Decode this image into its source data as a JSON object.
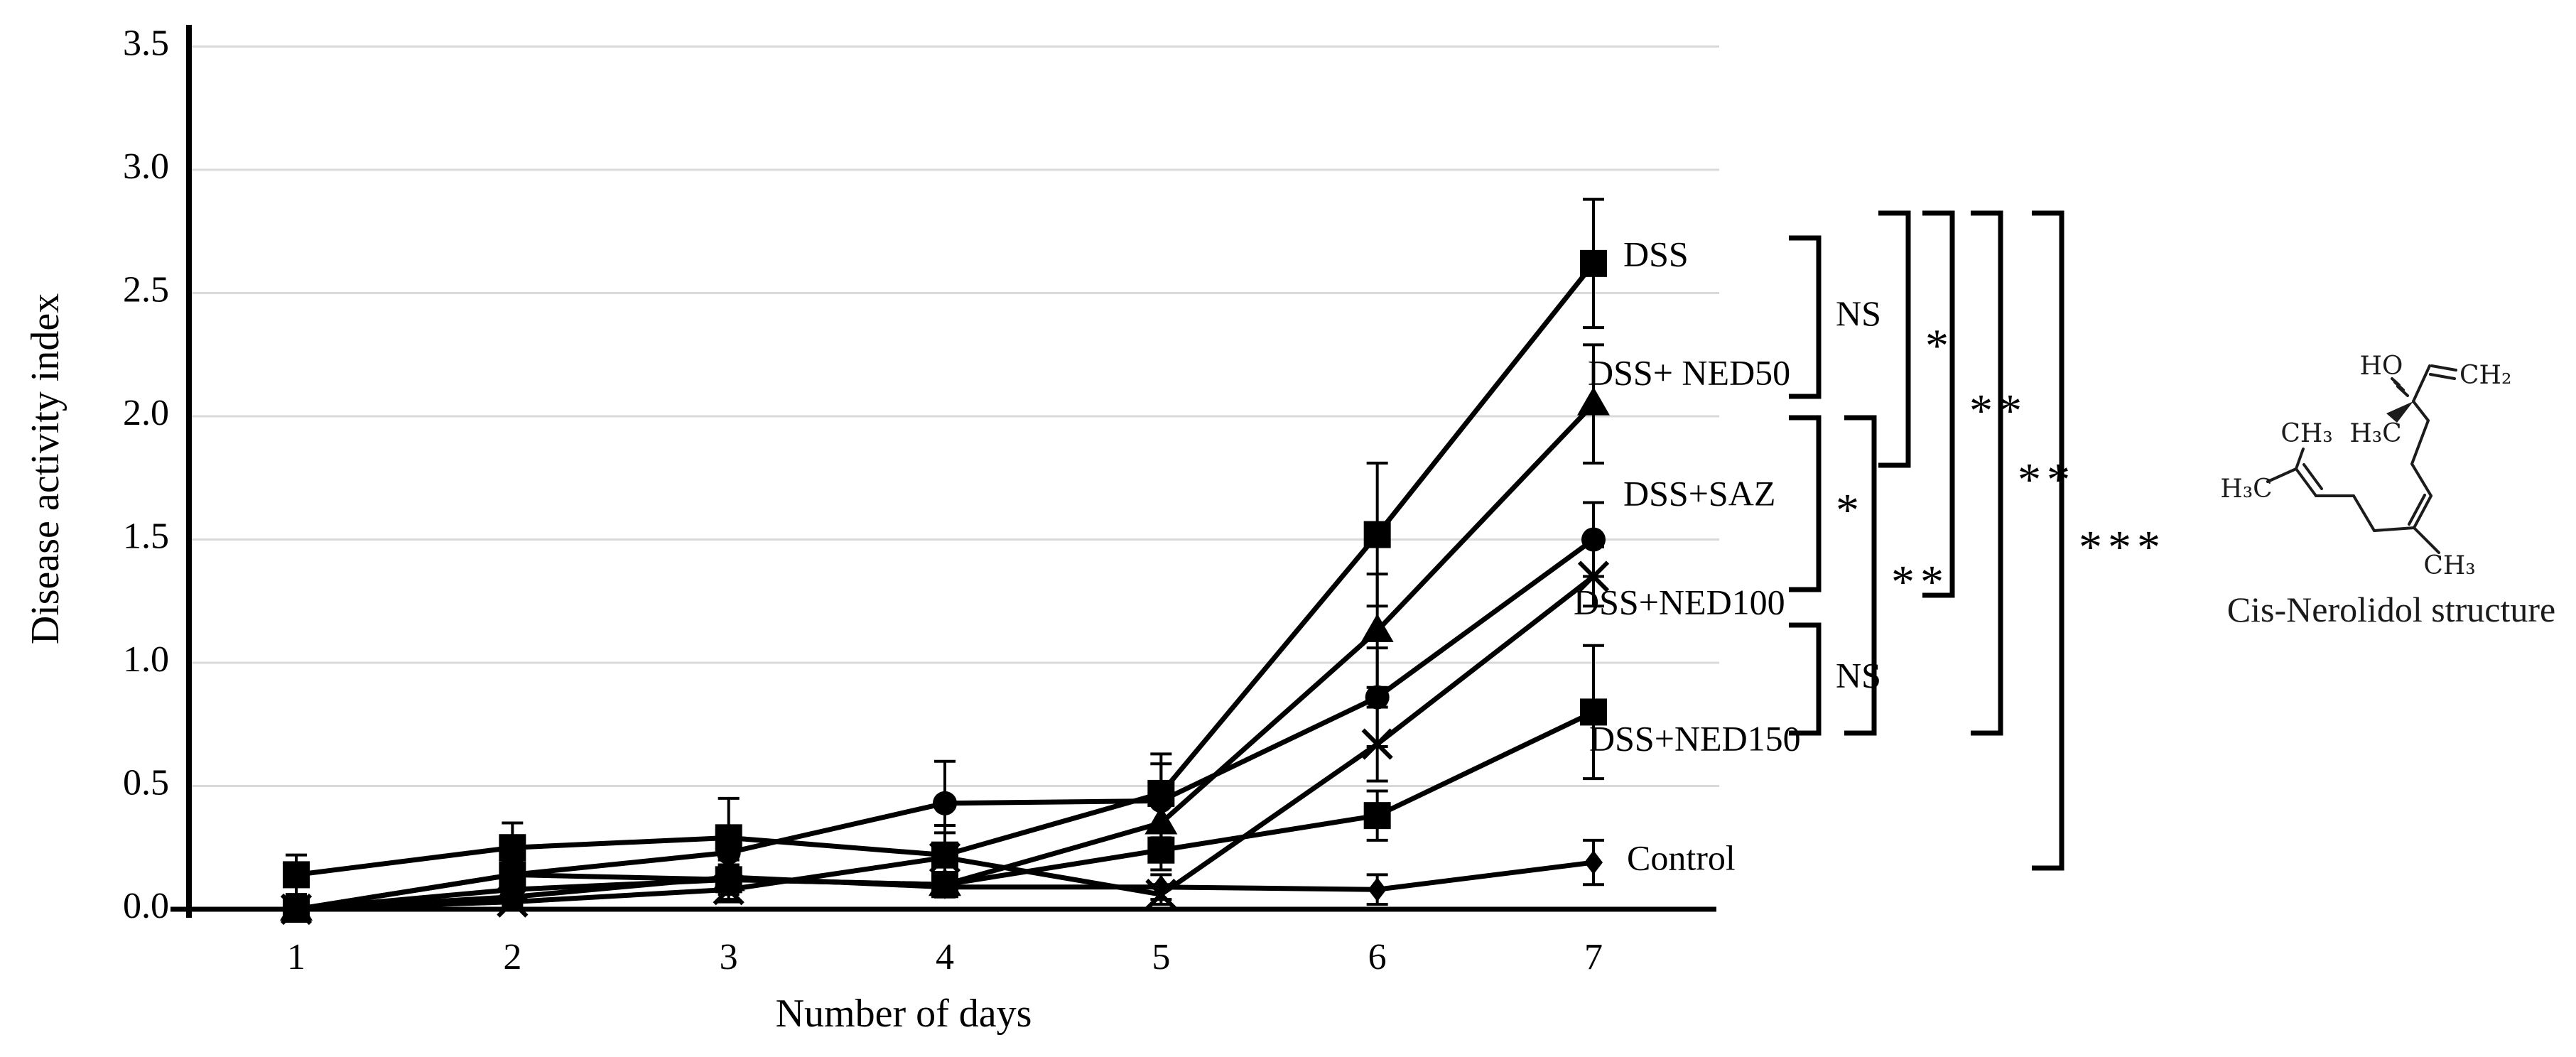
{
  "chart_data": {
    "type": "line",
    "x": [
      1,
      2,
      3,
      4,
      5,
      6,
      7
    ],
    "xlabel": "Number of days",
    "ylabel": "Disease activity index",
    "ylim": [
      0.0,
      3.5
    ],
    "ytick_step": 0.5,
    "ytick_labels": [
      "0.0",
      "0.5",
      "1.0",
      "1.5",
      "2.0",
      "2.5",
      "3.0",
      "3.5"
    ],
    "xtick_labels": [
      "1",
      "2",
      "3",
      "4",
      "5",
      "6",
      "7"
    ],
    "grid": "horizontal",
    "legend_position": "end-of-line-labels",
    "series": [
      {
        "name": "DSS",
        "label": "DSS",
        "marker": "square",
        "values": [
          0.14,
          0.25,
          0.29,
          0.22,
          0.47,
          1.52,
          2.62
        ],
        "err": [
          0.08,
          0.1,
          0.16,
          0.12,
          0.16,
          0.29,
          0.26
        ]
      },
      {
        "name": "DSS+NED50",
        "label": "DSS+ NED50",
        "marker": "triangle",
        "values": [
          0.0,
          0.08,
          0.12,
          0.1,
          0.35,
          1.13,
          2.05
        ],
        "err": [
          0.02,
          0.04,
          0.06,
          0.05,
          0.1,
          0.23,
          0.24
        ]
      },
      {
        "name": "DSS+SAZ",
        "label": "DSS+SAZ",
        "marker": "circle",
        "values": [
          0.0,
          0.14,
          0.23,
          0.43,
          0.44,
          0.86,
          1.5
        ],
        "err": [
          0.02,
          0.06,
          0.1,
          0.17,
          0.15,
          0.2,
          0.15
        ]
      },
      {
        "name": "DSS+NED100",
        "label": "DSS+NED100",
        "marker": "cross",
        "values": [
          0.0,
          0.03,
          0.08,
          0.21,
          0.06,
          0.67,
          1.35
        ],
        "err": [
          0.02,
          0.02,
          0.05,
          0.1,
          0.04,
          0.15,
          0.12
        ]
      },
      {
        "name": "DSS+NED150",
        "label": "DSS+NED150",
        "marker": "square",
        "values": [
          0.0,
          0.14,
          0.12,
          0.1,
          0.24,
          0.38,
          0.8
        ],
        "err": [
          0.03,
          0.06,
          0.08,
          0.05,
          0.08,
          0.1,
          0.27
        ]
      },
      {
        "name": "Control",
        "label": "Control",
        "marker": "diamond",
        "values": [
          0.0,
          0.05,
          0.13,
          0.09,
          0.09,
          0.08,
          0.19
        ],
        "err": [
          0.02,
          0.03,
          0.05,
          0.04,
          0.05,
          0.06,
          0.09
        ]
      }
    ],
    "significance_brackets": [
      {
        "from": "DSS",
        "to": "DSS+NED50",
        "label": "NS"
      },
      {
        "from": "DSS+NED50",
        "to": "DSS+NED100",
        "label": "*"
      },
      {
        "from": "DSS+NED100",
        "to": "DSS+NED150",
        "label": "NS"
      },
      {
        "from": "DSS+NED50",
        "to": "DSS+NED150",
        "label": "**"
      },
      {
        "from": "DSS",
        "to": "DSS+SAZ",
        "label": "*"
      },
      {
        "from": "DSS",
        "to": "DSS+NED100",
        "label": "**"
      },
      {
        "from": "DSS",
        "to": "DSS+NED150",
        "label": "**"
      },
      {
        "from": "DSS",
        "to": "Control",
        "label": "***"
      }
    ]
  },
  "molecule": {
    "caption": "Cis-Nerolidol structure",
    "atom_labels": {
      "ho": "HO",
      "ch2": "CH₂",
      "ch3_top": "CH₃",
      "h3c_chiral": "H₃C",
      "h3c_left": "H₃C",
      "ch3_bottom": "CH₃"
    }
  },
  "colors": {
    "line": "#000000",
    "grid": "#d9d9d9",
    "background": "#ffffff"
  }
}
